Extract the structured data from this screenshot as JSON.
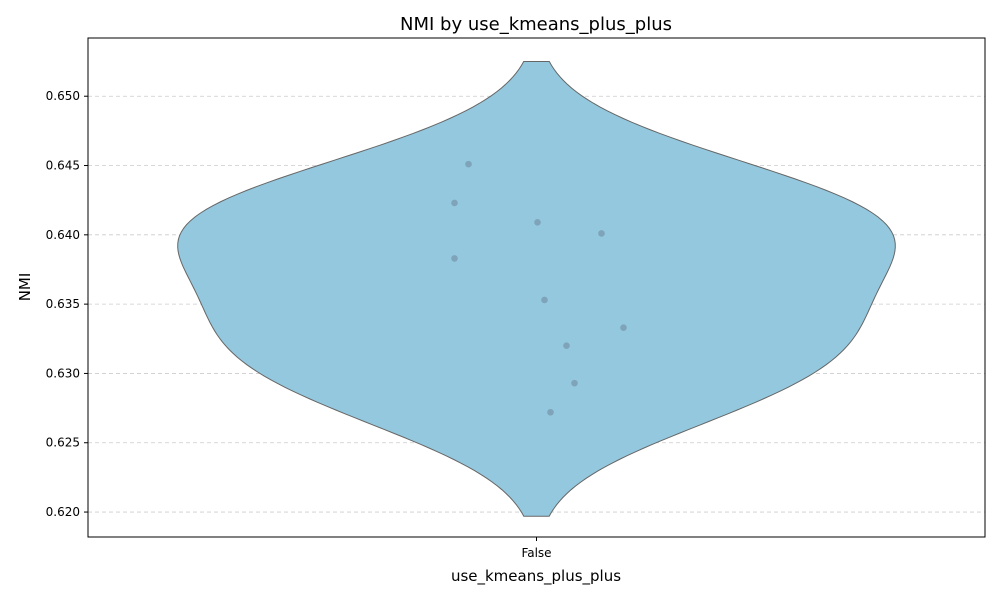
{
  "chart_data": {
    "type": "violin",
    "title": "NMI by use_kmeans_plus_plus",
    "xlabel": "use_kmeans_plus_plus",
    "ylabel": "NMI",
    "categories": [
      "False"
    ],
    "ylim": [
      0.6182,
      0.6542
    ],
    "yticks": [
      0.62,
      0.625,
      0.63,
      0.635,
      0.64,
      0.645,
      0.65
    ],
    "ytick_labels": [
      "0.620",
      "0.625",
      "0.630",
      "0.635",
      "0.640",
      "0.645",
      "0.650"
    ],
    "grid": "y-dashed",
    "violin": {
      "color": "#93c8de",
      "edge_color": "#666666",
      "range": [
        0.6197,
        0.6525
      ]
    },
    "points": [
      {
        "category": "False",
        "value": 0.6451
      },
      {
        "category": "False",
        "value": 0.6423
      },
      {
        "category": "False",
        "value": 0.6409
      },
      {
        "category": "False",
        "value": 0.6401
      },
      {
        "category": "False",
        "value": 0.6383
      },
      {
        "category": "False",
        "value": 0.6353
      },
      {
        "category": "False",
        "value": 0.6333
      },
      {
        "category": "False",
        "value": 0.632
      },
      {
        "category": "False",
        "value": 0.6293
      },
      {
        "category": "False",
        "value": 0.6272
      }
    ],
    "point_color": "#7b9db3"
  }
}
